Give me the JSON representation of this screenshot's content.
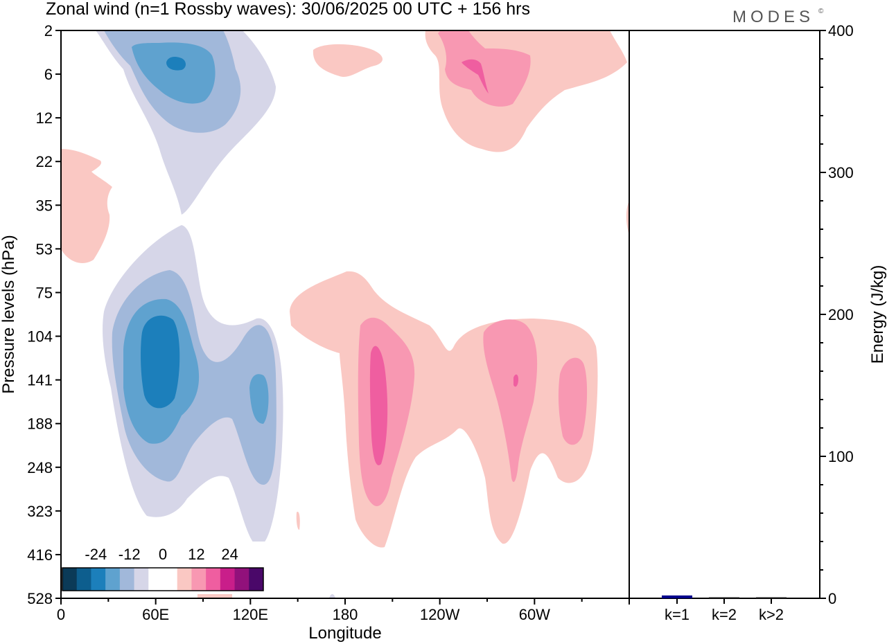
{
  "title": "Zonal wind (n=1 Rossby waves):  30/06/2025  00 UTC  + 156 hrs",
  "logo": "MODES",
  "logo_mark": "©",
  "colors": {
    "neg": [
      "#0b3a57",
      "#0d5e8e",
      "#1c7fbb",
      "#5fa2cf",
      "#a1b8da",
      "#d6d6e8"
    ],
    "zero": "#ffffff",
    "pos": [
      "#fac8c3",
      "#f898b2",
      "#ef5ea0",
      "#c91e8a",
      "#91117b",
      "#4a0869"
    ]
  },
  "chart_data": [
    {
      "type": "heatmap",
      "xlabel": "Longitude",
      "ylabel": "Pressure levels (hPa)",
      "x_ticks": [
        "0",
        "60E",
        "120E",
        "180",
        "120W",
        "60W"
      ],
      "x_tick_degrees": [
        0,
        60,
        120,
        180,
        240,
        300
      ],
      "xlim": [
        0,
        360
      ],
      "y_ticks": [
        "2",
        "6",
        "12",
        "22",
        "35",
        "53",
        "75",
        "104",
        "141",
        "188",
        "248",
        "323",
        "416",
        "528"
      ],
      "colorbar_labels": [
        "-24",
        "-12",
        "0",
        "12",
        "24"
      ],
      "colorbar_values": [
        -24,
        -12,
        0,
        12,
        24
      ],
      "anomalies": [
        {
          "sign": "neg",
          "lon": 58,
          "level": "6",
          "max_class": 4
        },
        {
          "sign": "neg",
          "lon": 60,
          "level": "141",
          "max_class": 3
        },
        {
          "sign": "neg",
          "lon": 125,
          "level": "141",
          "max_class": 2
        },
        {
          "sign": "pos",
          "lon": 250,
          "level": "6",
          "max_class": 2
        },
        {
          "sign": "pos",
          "lon": 20,
          "level": "35",
          "max_class": 1
        },
        {
          "sign": "pos",
          "lon": 200,
          "level": "141",
          "max_class": 3
        },
        {
          "sign": "pos",
          "lon": 288,
          "level": "141",
          "max_class": 3
        },
        {
          "sign": "pos",
          "lon": 322,
          "level": "141",
          "max_class": 2
        }
      ]
    },
    {
      "type": "bar",
      "ylabel": "Energy (J/kg)",
      "categories": [
        "k=1",
        "k=2",
        "k>2"
      ],
      "values": [
        2,
        0.3,
        0.3
      ],
      "ylim": [
        0,
        400
      ],
      "y_ticks": [
        "0",
        "100",
        "200",
        "300",
        "400"
      ],
      "bar_colors": [
        "#00008b",
        "#1a1a1a",
        "#1a1a1a"
      ]
    }
  ]
}
